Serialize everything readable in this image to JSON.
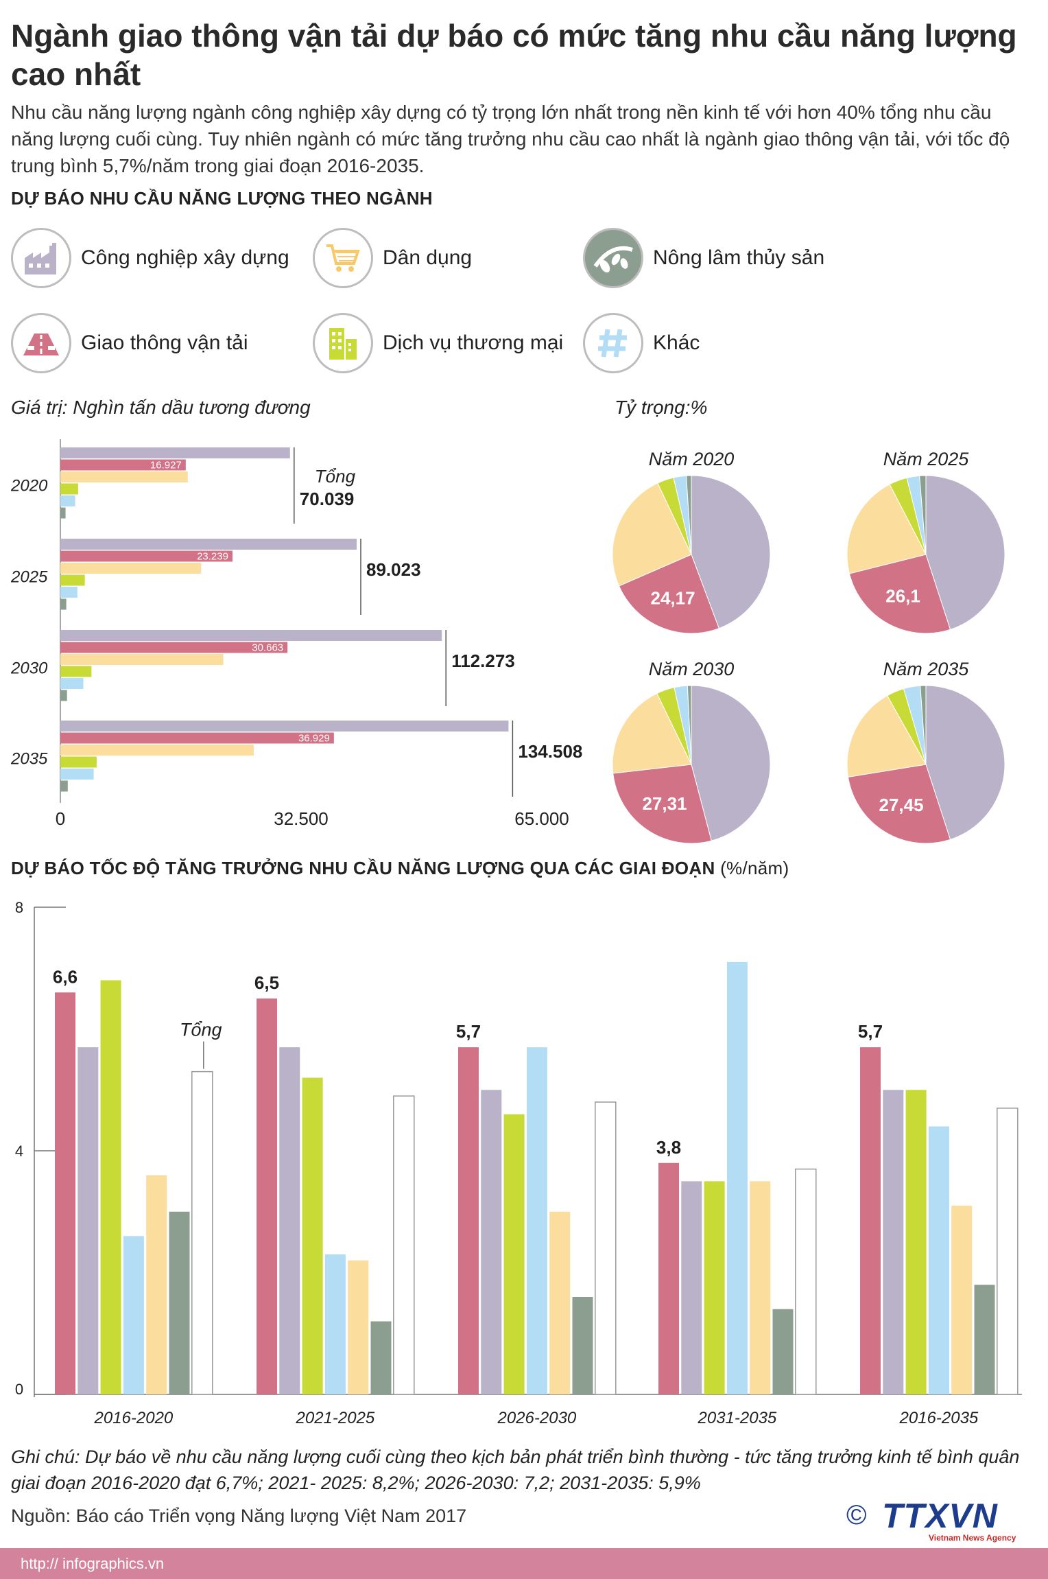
{
  "title": "Ngành giao thông vận tải dự báo có mức tăng nhu cầu năng lượng cao nhất",
  "intro": "Nhu cầu năng lượng ngành công nghiệp xây dựng có tỷ trọng lớn nhất trong nền kinh tế với hơn 40% tổng nhu cầu năng lượng cuối cùng. Tuy nhiên ngành có mức tăng trưởng nhu cầu cao nhất là ngành giao thông vận tải, với tốc độ trung bình 5,7%/năm trong giai đoạn 2016-2035.",
  "section1_title": "DỰ BÁO NHU CẦU NĂNG LƯỢNG THEO NGÀNH",
  "legend": [
    {
      "label": "Công nghiệp xây dựng",
      "icon": "factory-icon",
      "color": "#b9b2c8"
    },
    {
      "label": "Dân dụng",
      "icon": "shopping-cart-icon",
      "color": "#fbdd9d"
    },
    {
      "label": "Nông lâm thủy sản",
      "icon": "leaves-icon",
      "color": "#8c9e90"
    },
    {
      "label": "Giao thông vận tải",
      "icon": "road-icon",
      "color": "#d27287"
    },
    {
      "label": "Dịch vụ thương mại",
      "icon": "buildings-icon",
      "color": "#c8da36"
    },
    {
      "label": "Khác",
      "icon": "hash-icon",
      "color": "#b3ddf5"
    }
  ],
  "colors": {
    "cong_nghiep": "#b9b2c8",
    "giao_thong": "#d27287",
    "dan_dung": "#fbdd9d",
    "dich_vu": "#c8da36",
    "khac": "#b3ddf5",
    "nong_lam": "#8c9e90"
  },
  "bar_chart_label": "Giá trị: Nghìn tấn dầu tương đương",
  "pie_chart_label": "Tỷ trọng:%",
  "total_label": "Tổng",
  "chart_data": [
    {
      "type": "bar",
      "orientation": "horizontal",
      "title": "Giá trị: Nghìn tấn dầu tương đương",
      "categories": [
        "2020",
        "2025",
        "2030",
        "2035"
      ],
      "series_order": [
        "Công nghiệp xây dựng",
        "Giao thông vận tải",
        "Dân dụng",
        "Dịch vụ thương mại",
        "Khác",
        "Nông lâm thủy sản"
      ],
      "series": [
        {
          "name": "Công nghiệp xây dựng",
          "values": [
            31000,
            40000,
            51500,
            60500
          ]
        },
        {
          "name": "Giao thông vận tải",
          "values": [
            16927,
            23239,
            30663,
            36929
          ]
        },
        {
          "name": "Dân dụng",
          "values": [
            17200,
            19000,
            22000,
            26100
          ]
        },
        {
          "name": "Dịch vụ thương mại",
          "values": [
            2400,
            3300,
            4200,
            4900
          ]
        },
        {
          "name": "Khác",
          "values": [
            2000,
            2300,
            3100,
            4500
          ]
        },
        {
          "name": "Nông lâm thủy sản",
          "values": [
            700,
            800,
            900,
            1000
          ]
        }
      ],
      "transport_labels": [
        "16.927",
        "23.239",
        "30.663",
        "36.929"
      ],
      "totals": [
        "70.039",
        "89.023",
        "112.273",
        "134.508"
      ],
      "xticks": [
        "0",
        "32.500",
        "65.000"
      ],
      "xlim": [
        0,
        65000
      ]
    },
    {
      "type": "pie",
      "title": "Tỷ trọng:%",
      "charts": [
        {
          "label": "Năm 2020",
          "transport_label": "24,17",
          "slices": [
            44.3,
            24.17,
            24.5,
            3.4,
            2.6,
            1.03
          ]
        },
        {
          "label": "Năm 2025",
          "transport_label": "26,1",
          "slices": [
            45.0,
            26.1,
            21.3,
            3.7,
            2.6,
            1.3
          ]
        },
        {
          "label": "Năm 2030",
          "transport_label": "27,31",
          "slices": [
            45.9,
            27.31,
            19.6,
            3.7,
            2.7,
            0.79
          ]
        },
        {
          "label": "Năm 2035",
          "transport_label": "27,45",
          "slices": [
            45.0,
            27.45,
            19.4,
            3.6,
            3.4,
            1.15
          ]
        }
      ]
    },
    {
      "type": "bar",
      "orientation": "vertical",
      "title": "DỰ BÁO TỐC ĐỘ TĂNG TRƯỞNG NHU CẦU NĂNG LƯỢNG QUA CÁC GIAI ĐOẠN",
      "unit": "(%/năm)",
      "categories": [
        "2016-2020",
        "2021-2025",
        "2026-2030",
        "2031-2035",
        "2016-2035"
      ],
      "series": [
        {
          "name": "Giao thông vận tải",
          "values": [
            6.6,
            6.5,
            5.7,
            3.8,
            5.7
          ]
        },
        {
          "name": "Công nghiệp xây dựng",
          "values": [
            5.7,
            5.7,
            5.0,
            3.5,
            5.0
          ]
        },
        {
          "name": "Dịch vụ thương mại",
          "values": [
            6.8,
            5.2,
            4.6,
            3.5,
            5.0
          ]
        },
        {
          "name": "Khác",
          "values": [
            2.6,
            2.3,
            5.7,
            7.1,
            4.4
          ]
        },
        {
          "name": "Dân dụng",
          "values": [
            3.6,
            2.2,
            3.0,
            3.5,
            3.1
          ]
        },
        {
          "name": "Nông lâm thủy sản",
          "values": [
            3.0,
            1.2,
            1.6,
            1.4,
            1.8
          ]
        },
        {
          "name": "Tổng",
          "values": [
            5.3,
            4.9,
            4.8,
            3.7,
            4.7
          ]
        }
      ],
      "value_labels": [
        "6,6",
        "6,5",
        "5,7",
        "3,8",
        "5,7"
      ],
      "total_label": "Tổng",
      "yticks": [
        "0",
        "4",
        "8"
      ],
      "ylim": [
        0,
        8
      ]
    }
  ],
  "section2_title": "DỰ BÁO TỐC ĐỘ TĂNG TRƯỞNG NHU CẦU NĂNG LƯỢNG QUA CÁC GIAI ĐOẠN",
  "section2_unit": "(%/năm)",
  "note": "Ghi chú: Dự báo về nhu cầu năng lượng cuối cùng theo kịch bản phát triển bình thường - tức tăng trưởng kinh tế bình quân giai đoạn 2016-2020 đạt 6,7%; 2021- 2025: 8,2%; 2026-2030: 7,2; 2031-2035: 5,9%",
  "source": "Nguồn: Báo cáo Triển vọng Năng lượng Việt Nam 2017",
  "logo": {
    "symbol": "©",
    "name": "TTXVN",
    "subtitle": "Vietnam News Agency"
  },
  "footer_url": "http:// infographics.vn"
}
